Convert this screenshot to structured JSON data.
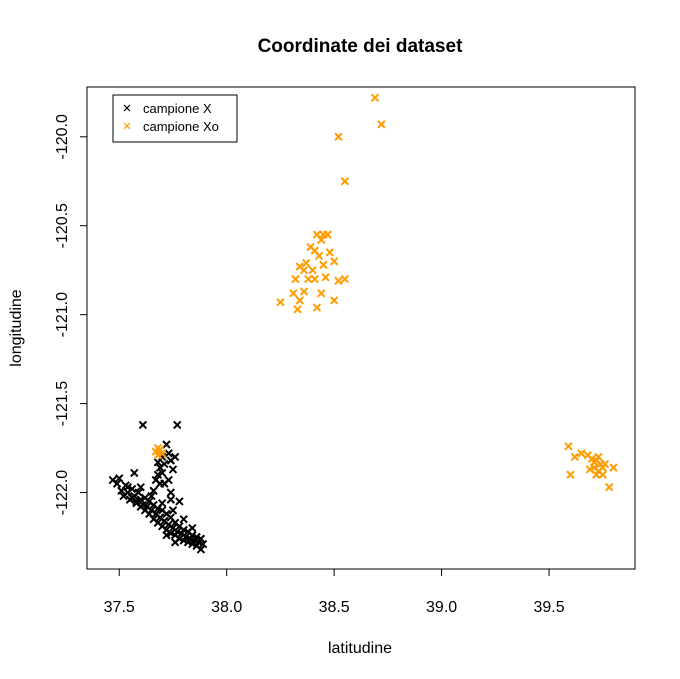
{
  "chart_data": {
    "type": "scatter",
    "title": "Coordinate dei dataset",
    "xlabel": "latitudine",
    "ylabel": "longitudine",
    "xlim": [
      37.35,
      39.9
    ],
    "ylim": [
      -122.43,
      -119.72
    ],
    "x_ticks": [
      37.5,
      38.0,
      38.5,
      39.0,
      39.5
    ],
    "x_tick_labels": [
      "37.5",
      "38.0",
      "38.5",
      "39.0",
      "39.5"
    ],
    "y_ticks": [
      -120.0,
      -120.5,
      -121.0,
      -121.5,
      -122.0
    ],
    "y_tick_labels": [
      "-120.0",
      "-120.5",
      "-121.0",
      "-121.5",
      "-122.0"
    ],
    "grid": false,
    "legend_position": "top-left",
    "marker": "x",
    "series": [
      {
        "name": "campione X",
        "color": "#000000",
        "points": [
          [
            37.47,
            -121.93
          ],
          [
            37.49,
            -121.95
          ],
          [
            37.5,
            -121.92
          ],
          [
            37.51,
            -121.99
          ],
          [
            37.52,
            -122.02
          ],
          [
            37.53,
            -121.96
          ],
          [
            37.54,
            -122.0
          ],
          [
            37.55,
            -122.04
          ],
          [
            37.56,
            -121.98
          ],
          [
            37.57,
            -122.02
          ],
          [
            37.58,
            -122.06
          ],
          [
            37.59,
            -122.0
          ],
          [
            37.6,
            -122.04
          ],
          [
            37.61,
            -122.07
          ],
          [
            37.62,
            -122.03
          ],
          [
            37.63,
            -122.08
          ],
          [
            37.64,
            -122.05
          ],
          [
            37.65,
            -122.1
          ],
          [
            37.66,
            -122.07
          ],
          [
            37.67,
            -122.12
          ],
          [
            37.68,
            -122.09
          ],
          [
            37.69,
            -122.14
          ],
          [
            37.7,
            -122.1
          ],
          [
            37.71,
            -122.16
          ],
          [
            37.72,
            -122.12
          ],
          [
            37.73,
            -122.18
          ],
          [
            37.74,
            -122.14
          ],
          [
            37.75,
            -122.2
          ],
          [
            37.76,
            -122.17
          ],
          [
            37.77,
            -122.22
          ],
          [
            37.78,
            -122.19
          ],
          [
            37.79,
            -122.23
          ],
          [
            37.8,
            -122.21
          ],
          [
            37.81,
            -122.25
          ],
          [
            37.82,
            -122.22
          ],
          [
            37.83,
            -122.26
          ],
          [
            37.84,
            -122.24
          ],
          [
            37.85,
            -122.27
          ],
          [
            37.86,
            -122.25
          ],
          [
            37.87,
            -122.28
          ],
          [
            37.88,
            -122.26
          ],
          [
            37.89,
            -122.29
          ],
          [
            37.88,
            -122.32
          ],
          [
            37.86,
            -122.3
          ],
          [
            37.84,
            -122.29
          ],
          [
            37.82,
            -122.28
          ],
          [
            37.8,
            -122.27
          ],
          [
            37.78,
            -122.26
          ],
          [
            37.76,
            -122.24
          ],
          [
            37.74,
            -122.23
          ],
          [
            37.72,
            -122.21
          ],
          [
            37.7,
            -122.19
          ],
          [
            37.68,
            -122.17
          ],
          [
            37.66,
            -122.15
          ],
          [
            37.64,
            -122.12
          ],
          [
            37.62,
            -122.1
          ],
          [
            37.6,
            -122.08
          ],
          [
            37.58,
            -122.05
          ],
          [
            37.56,
            -122.03
          ],
          [
            37.54,
            -121.97
          ],
          [
            37.6,
            -121.97
          ],
          [
            37.65,
            -122.02
          ],
          [
            37.7,
            -122.06
          ],
          [
            37.75,
            -122.1
          ],
          [
            37.8,
            -122.15
          ],
          [
            37.72,
            -122.24
          ],
          [
            37.76,
            -122.28
          ],
          [
            37.84,
            -122.2
          ],
          [
            37.78,
            -122.05
          ],
          [
            37.74,
            -122.04
          ],
          [
            37.68,
            -121.83
          ],
          [
            37.69,
            -121.86
          ],
          [
            37.7,
            -121.89
          ],
          [
            37.68,
            -121.9
          ],
          [
            37.71,
            -121.84
          ],
          [
            37.7,
            -121.8
          ],
          [
            37.72,
            -121.73
          ],
          [
            37.73,
            -121.78
          ],
          [
            37.74,
            -121.82
          ],
          [
            37.75,
            -121.87
          ],
          [
            37.76,
            -121.8
          ],
          [
            37.73,
            -121.93
          ],
          [
            37.71,
            -121.95
          ],
          [
            37.69,
            -121.95
          ],
          [
            37.67,
            -121.93
          ],
          [
            37.61,
            -121.62
          ],
          [
            37.77,
            -121.62
          ],
          [
            37.57,
            -121.89
          ],
          [
            37.66,
            -121.99
          ],
          [
            37.74,
            -122.0
          ]
        ]
      },
      {
        "name": "campione Xo",
        "color": "#ff9c00",
        "points": [
          [
            38.69,
            -119.78
          ],
          [
            38.72,
            -119.93
          ],
          [
            38.52,
            -120.0
          ],
          [
            38.55,
            -120.25
          ],
          [
            38.42,
            -120.55
          ],
          [
            38.45,
            -120.55
          ],
          [
            38.47,
            -120.55
          ],
          [
            38.44,
            -120.58
          ],
          [
            38.39,
            -120.62
          ],
          [
            38.41,
            -120.64
          ],
          [
            38.43,
            -120.67
          ],
          [
            38.48,
            -120.65
          ],
          [
            38.37,
            -120.71
          ],
          [
            38.34,
            -120.73
          ],
          [
            38.36,
            -120.75
          ],
          [
            38.4,
            -120.75
          ],
          [
            38.45,
            -120.72
          ],
          [
            38.5,
            -120.7
          ],
          [
            38.32,
            -120.8
          ],
          [
            38.38,
            -120.8
          ],
          [
            38.41,
            -120.8
          ],
          [
            38.46,
            -120.79
          ],
          [
            38.52,
            -120.81
          ],
          [
            38.55,
            -120.8
          ],
          [
            38.31,
            -120.88
          ],
          [
            38.36,
            -120.87
          ],
          [
            38.44,
            -120.88
          ],
          [
            38.25,
            -120.93
          ],
          [
            38.34,
            -120.92
          ],
          [
            38.5,
            -120.92
          ],
          [
            38.33,
            -120.97
          ],
          [
            38.42,
            -120.96
          ],
          [
            37.67,
            -121.77
          ],
          [
            37.68,
            -121.75
          ],
          [
            37.69,
            -121.76
          ],
          [
            37.7,
            -121.78
          ],
          [
            37.68,
            -121.79
          ],
          [
            39.59,
            -121.74
          ],
          [
            39.62,
            -121.8
          ],
          [
            39.65,
            -121.78
          ],
          [
            39.68,
            -121.79
          ],
          [
            39.7,
            -121.81
          ],
          [
            39.72,
            -121.82
          ],
          [
            39.73,
            -121.8
          ],
          [
            39.74,
            -121.84
          ],
          [
            39.71,
            -121.86
          ],
          [
            39.69,
            -121.87
          ],
          [
            39.73,
            -121.88
          ],
          [
            39.75,
            -121.86
          ],
          [
            39.76,
            -121.84
          ],
          [
            39.8,
            -121.86
          ],
          [
            39.72,
            -121.9
          ],
          [
            39.75,
            -121.9
          ],
          [
            39.6,
            -121.9
          ],
          [
            39.78,
            -121.97
          ],
          [
            39.71,
            -121.83
          ]
        ]
      }
    ]
  }
}
